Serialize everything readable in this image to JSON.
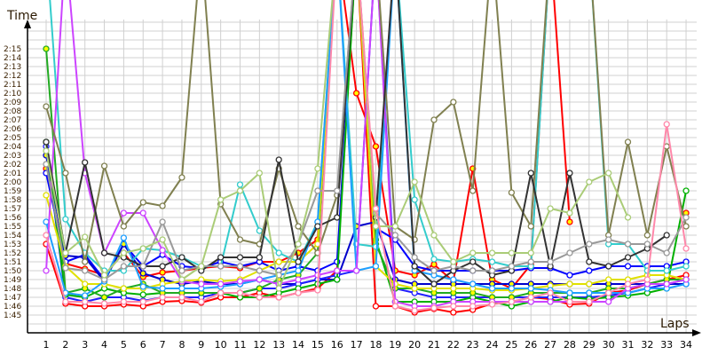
{
  "chart_data": {
    "type": "line",
    "title": "",
    "ylabel": "Time",
    "xlabel": "Laps",
    "x": [
      1,
      2,
      3,
      4,
      5,
      6,
      7,
      8,
      9,
      10,
      11,
      12,
      13,
      14,
      15,
      16,
      17,
      18,
      19,
      20,
      21,
      22,
      23,
      24,
      25,
      26,
      27,
      28,
      29,
      30,
      31,
      32,
      33,
      34
    ],
    "ylim_seconds": [
      105,
      135
    ],
    "yticks": [
      "1:45",
      "1:46",
      "1:47",
      "1:48",
      "1:49",
      "1:50",
      "1:51",
      "1:52",
      "1:53",
      "1:54",
      "1:55",
      "1:56",
      "1:57",
      "1:58",
      "1:59",
      "2:00",
      "2:01",
      "2:02",
      "2:03",
      "2:04",
      "2:05",
      "2:06",
      "2:07",
      "2:08",
      "2:09",
      "2:10",
      "2:11",
      "2:12",
      "2:13",
      "2:14",
      "2:15"
    ],
    "grid": true,
    "note": "values in seconds; 300 = off-chart (pit / slow lap)",
    "series": [
      {
        "name": "red",
        "color": "#ff0000",
        "marker": "hollow",
        "values": [
          113,
          106.3,
          106,
          106,
          106.2,
          106,
          106.5,
          106.6,
          106.4,
          107,
          107,
          107.5,
          107,
          107.5,
          108,
          110,
          300,
          106,
          106,
          105.3,
          105.7,
          105.3,
          105.6,
          106.3,
          106.5,
          107,
          106.8,
          106.2,
          106.3,
          107.5,
          107.8,
          108.5,
          109,
          109.5
        ]
      },
      {
        "name": "red-2",
        "color": "#ff0000",
        "marker": "yellow",
        "values": [
          121.5,
          110.8,
          110.2,
          109.5,
          112,
          109.3,
          109.8,
          110,
          110.3,
          110.5,
          110.3,
          111,
          111,
          112,
          113.5,
          300,
          130,
          124,
          110,
          109.5,
          110.7,
          108.8,
          121.5,
          109,
          108,
          110.7,
          300,
          115.5,
          null,
          null,
          null,
          null,
          null,
          116.5
        ]
      },
      {
        "name": "blue",
        "color": "#0000ff",
        "marker": "hollow",
        "values": [
          121,
          111,
          111.8,
          109,
          113,
          110.5,
          111.8,
          110.5,
          110.3,
          111,
          110.5,
          111,
          110,
          110.5,
          110,
          111,
          300,
          114.8,
          113.5,
          110.5,
          110,
          110,
          110,
          110,
          110,
          110.3,
          110.3,
          109.5,
          110,
          110.5,
          110.5,
          110.5,
          110.5,
          111
        ]
      },
      {
        "name": "dark-blue",
        "color": "#0000cc",
        "marker": "yellow",
        "values": [
          123,
          111.7,
          111.5,
          108.8,
          113,
          109.7,
          109,
          108.5,
          108.8,
          108.5,
          108.5,
          109,
          108.5,
          108.5,
          109,
          109,
          115,
          115.5,
          109,
          108.5,
          108.5,
          108.5,
          108.5,
          108.5,
          108.5,
          108.5,
          108.5,
          108.5,
          108.5,
          108.5,
          108.5,
          108.5,
          108.5,
          108.5
        ]
      },
      {
        "name": "blue-2",
        "color": "#2020ff",
        "marker": "hollow",
        "values": [
          124,
          107,
          106.5,
          107,
          107,
          106.6,
          107,
          107,
          107,
          107.5,
          107.5,
          108,
          108,
          108.5,
          109,
          109.5,
          110,
          300,
          108,
          107.5,
          107,
          107,
          107,
          107,
          107,
          107,
          107,
          107,
          107,
          107.2,
          107.5,
          108,
          108.5,
          109
        ]
      },
      {
        "name": "green",
        "color": "#00b000",
        "marker": "hollow",
        "values": [
          124.5,
          107.3,
          107,
          108,
          107.5,
          107.3,
          107.5,
          107.5,
          107.5,
          107.5,
          107,
          107,
          107.5,
          108,
          108.5,
          109,
          300,
          113.5,
          106.5,
          106.5,
          106.5,
          106.5,
          107,
          106.5,
          106,
          106.5,
          106.5,
          107,
          106.8,
          107,
          107.2,
          107.5,
          108,
          119
        ]
      },
      {
        "name": "lime",
        "color": "#22aa22",
        "marker": "yellow",
        "values": [
          135,
          107.5,
          108,
          107,
          108,
          108.5,
          107.5,
          107.5,
          107.5,
          107.5,
          107.5,
          108,
          109,
          109.5,
          112,
          300,
          300,
          113,
          108,
          108,
          107.5,
          107.5,
          107.5,
          107,
          107,
          107.5,
          107.5,
          107.5,
          107.5,
          108,
          108,
          108.5,
          109,
          109
        ]
      },
      {
        "name": "yellow",
        "color": "#e0e000",
        "marker": "hollow",
        "values": [
          118.5,
          110.5,
          108.5,
          108.5,
          108,
          108,
          108.5,
          108.8,
          109,
          108.8,
          109,
          110,
          111,
          111,
          113,
          300,
          300,
          110.5,
          108.5,
          108,
          108,
          108,
          108,
          107.8,
          107.8,
          108,
          108.3,
          108.5,
          108.5,
          109,
          109,
          109.5,
          109.5,
          109
        ]
      },
      {
        "name": "turquoise",
        "color": "#33cccc",
        "marker": "hollow",
        "values": [
          300,
          115.8,
          112,
          110,
          110,
          112.5,
          112.3,
          111.5,
          110.5,
          110.5,
          119.7,
          114.5,
          112,
          111,
          115.5,
          300,
          113,
          112.7,
          300,
          118,
          111.3,
          111,
          111.3,
          111,
          110.5,
          110.5,
          300,
          300,
          300,
          113,
          113,
          110,
          110,
          110.5
        ]
      },
      {
        "name": "sky-blue",
        "color": "#1e9fff",
        "marker": "hollow",
        "values": [
          115.5,
          107.5,
          107.2,
          108.8,
          113.7,
          108.2,
          108,
          108,
          108,
          108.2,
          108.5,
          109,
          109.5,
          110,
          115.5,
          300,
          110,
          110.5,
          300,
          110,
          109.5,
          109,
          108.5,
          108,
          108,
          108,
          107.8,
          107.5,
          107.5,
          107.5,
          107.5,
          108,
          108,
          108.5
        ]
      },
      {
        "name": "violet",
        "color": "#cc44ff",
        "marker": "hollow",
        "values": [
          110,
          300,
          121,
          112,
          116.5,
          116.5,
          112.3,
          108.8,
          108.5,
          108.5,
          108.8,
          109,
          108.5,
          109,
          109.5,
          110,
          110,
          300,
          106.5,
          106,
          106,
          106.5,
          106.5,
          106.5,
          106.5,
          106.5,
          106.5,
          106.5,
          106.5,
          106.5,
          108,
          108.5,
          108.5,
          109
        ]
      },
      {
        "name": "olive",
        "color": "#808050",
        "marker": "hollow",
        "values": [
          128.5,
          121,
          111,
          121.8,
          115,
          117.7,
          117.3,
          120.5,
          300,
          117.5,
          113.5,
          113,
          121.5,
          115,
          112,
          118.5,
          300,
          300,
          115,
          113.5,
          127,
          129,
          119,
          300,
          118.8,
          115,
          300,
          300,
          300,
          114,
          124.5,
          114,
          124,
          115
        ]
      },
      {
        "name": "dark-gray",
        "color": "#333333",
        "marker": "hollow",
        "values": [
          124.5,
          112,
          122.2,
          112,
          111.5,
          110.5,
          110.5,
          111.5,
          110,
          111.5,
          111.5,
          111.5,
          122.5,
          111,
          115,
          116,
          300,
          116,
          300,
          110.5,
          108.5,
          110,
          111,
          109.5,
          110,
          121,
          110.5,
          121,
          111,
          110.5,
          111.5,
          112.5,
          114,
          null
        ]
      },
      {
        "name": "gray",
        "color": "#999999",
        "marker": "hollow",
        "values": [
          122,
          110.3,
          110,
          109,
          110.5,
          110.5,
          115.5,
          110,
          110.5,
          110.5,
          110.5,
          110,
          109.5,
          113,
          119,
          119,
          300,
          116.5,
          114,
          111.5,
          110,
          110.5,
          110,
          110,
          110.5,
          111,
          111,
          112,
          113,
          113.5,
          113,
          113,
          112,
          116
        ]
      },
      {
        "name": "light-green",
        "color": "#aacc77",
        "marker": "hollow",
        "values": [
          123.5,
          112,
          113.8,
          109.5,
          112,
          112.5,
          113.5,
          109,
          110.5,
          118,
          119,
          121,
          108,
          113,
          121.5,
          300,
          300,
          115,
          115,
          120,
          114,
          111,
          112,
          112,
          112,
          112,
          117,
          116.5,
          120,
          121,
          116,
          null,
          null,
          null
        ]
      },
      {
        "name": "pink",
        "color": "#ff88aa",
        "marker": "hollow",
        "values": [
          114,
          106.5,
          106.5,
          106.3,
          106.5,
          106.5,
          107,
          107,
          106.5,
          107.5,
          107.5,
          107,
          107,
          107.5,
          107.8,
          300,
          300,
          117,
          106,
          105.5,
          105.8,
          106,
          106,
          106.2,
          106.5,
          107,
          107.5,
          106.5,
          106.5,
          107.5,
          108.5,
          109,
          126.5,
          112.5
        ]
      }
    ]
  }
}
